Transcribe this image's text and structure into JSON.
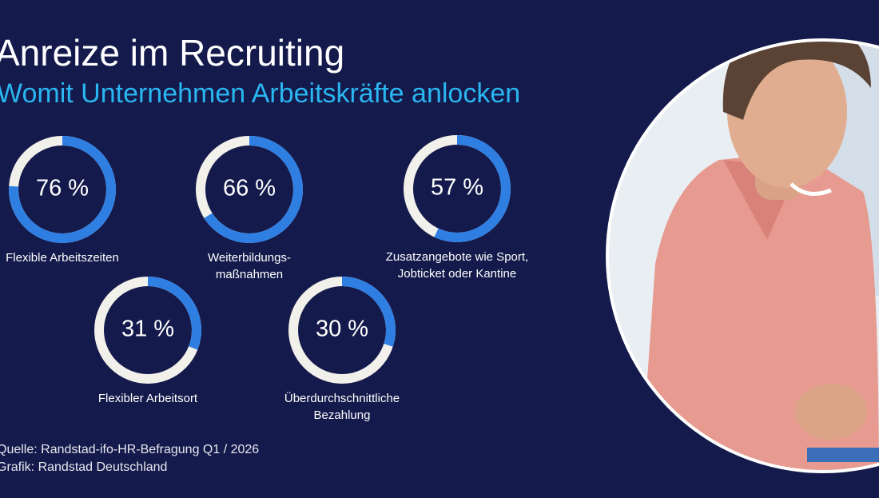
{
  "chart_data": {
    "type": "donut",
    "title": "Anreize im Recruiting",
    "subtitle": "Womit Unternehmen Arbeitskräfte anlocken",
    "categories": [
      [
        "Flexible Arbeitszeiten"
      ],
      [
        "Weiterbildungs-",
        "maßnahmen"
      ],
      [
        "Zusatzangebote wie Sport,",
        "Jobticket oder Kantine"
      ],
      [
        "Flexibler Arbeitsort"
      ],
      [
        "Überdurchschnittliche",
        "Bezahlung"
      ]
    ],
    "values": [
      76,
      66,
      57,
      31,
      30
    ],
    "value_labels": [
      "76 %",
      "66 %",
      "57 %",
      "31 %",
      "30 %"
    ],
    "vlim": [
      0,
      100
    ],
    "color": "#2f7fe3",
    "track_color": "#f2f0ea",
    "source": [
      "Quelle:  Randstad-ifo-HR-Befragung Q1 / 2026",
      "Grafik: Randstad Deutschland"
    ]
  }
}
